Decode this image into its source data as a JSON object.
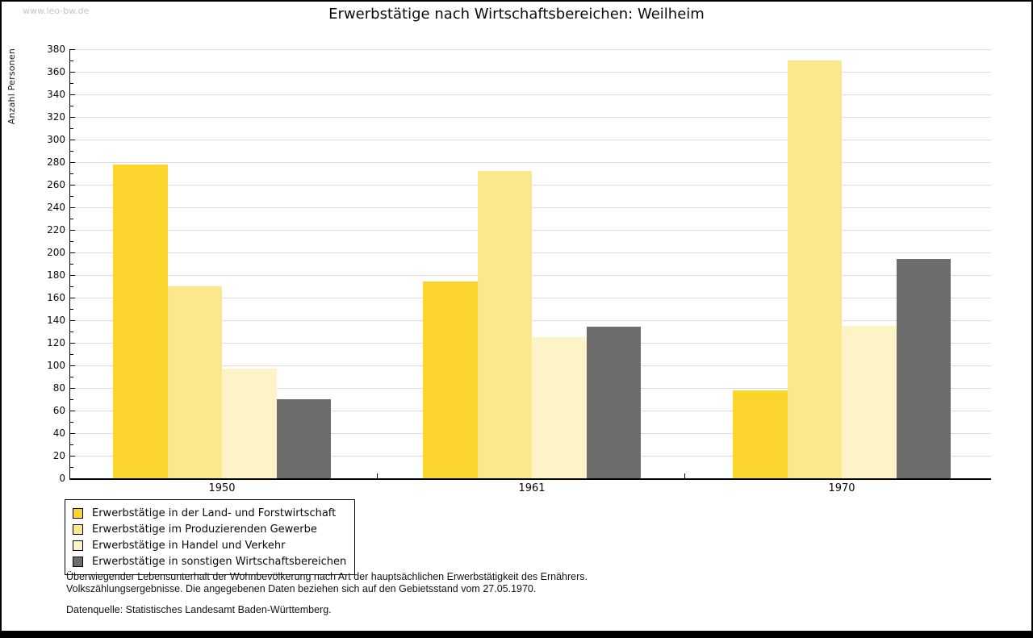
{
  "watermark": "www.leo-bw.de",
  "chart_data": {
    "type": "bar",
    "title": "Erwerbstätige nach Wirtschaftsbereichen: Weilheim",
    "xlabel": "",
    "ylabel": "Anzahl Personen",
    "ylim": [
      0,
      380
    ],
    "ytick_step": 20,
    "ytick_minor_step": 10,
    "grid": true,
    "legend_position": "bottom-left",
    "categories": [
      "1950",
      "1961",
      "1970"
    ],
    "series": [
      {
        "name": "Erwerbstätige in der Land- und Forstwirtschaft",
        "color": "#fbd42d",
        "values": [
          278,
          174,
          78
        ]
      },
      {
        "name": "Erwerbstätige im Produzierenden Gewerbe",
        "color": "#fce88c",
        "values": [
          170,
          272,
          370
        ]
      },
      {
        "name": "Erwerbstätige in Handel und Verkehr",
        "color": "#fcf4c6",
        "values": [
          97,
          125,
          135
        ]
      },
      {
        "name": "Erwerbstätige in sonstigen Wirtschaftsbereichen",
        "color": "#6d6d6d",
        "values": [
          70,
          134,
          194
        ]
      }
    ]
  },
  "footnotes": {
    "line1": "Überwiegender Lebensunterhalt der Wohnbevölkerung nach Art der hauptsächlichen Erwerbstätigkeit des Ernährers.",
    "line2": "Volkszählungsergebnisse. Die angegebenen Daten beziehen sich auf den Gebietsstand vom 27.05.1970.",
    "source": "Datenquelle: Statistisches Landesamt Baden-Württemberg."
  }
}
